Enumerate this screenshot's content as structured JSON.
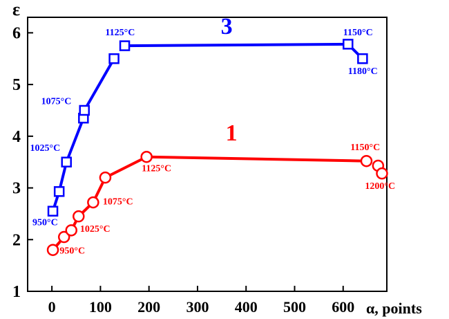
{
  "chart_data": {
    "type": "scatter",
    "title": "",
    "xlabel": "α, points",
    "ylabel": "ε",
    "xlim": [
      -50,
      690
    ],
    "ylim": [
      1,
      6.3
    ],
    "x_ticks": [
      0,
      100,
      200,
      300,
      400,
      500,
      600
    ],
    "y_ticks": [
      1,
      2,
      3,
      4,
      5,
      6
    ],
    "grid": false,
    "series": [
      {
        "name": "3",
        "color": "#0000ff",
        "marker": "square",
        "points": [
          {
            "x": 2,
            "y": 2.55
          },
          {
            "x": 15,
            "y": 2.93
          },
          {
            "x": 30,
            "y": 3.5
          },
          {
            "x": 65,
            "y": 4.35
          },
          {
            "x": 67,
            "y": 4.5
          },
          {
            "x": 128,
            "y": 5.5
          },
          {
            "x": 150,
            "y": 5.75
          },
          {
            "x": 610,
            "y": 5.78
          },
          {
            "x": 640,
            "y": 5.5
          }
        ],
        "segments": [
          [
            {
              "x": 2,
              "y": 2.55
            },
            {
              "x": 15,
              "y": 2.93
            }
          ],
          [
            {
              "x": 15,
              "y": 2.93
            },
            {
              "x": 30,
              "y": 3.5
            }
          ],
          [
            {
              "x": 30,
              "y": 3.5
            },
            {
              "x": 65,
              "y": 4.35
            }
          ],
          [
            {
              "x": 67,
              "y": 4.5
            },
            {
              "x": 128,
              "y": 5.5
            }
          ],
          [
            {
              "x": 150,
              "y": 5.75
            },
            {
              "x": 610,
              "y": 5.78
            }
          ],
          [
            {
              "x": 610,
              "y": 5.78
            },
            {
              "x": 640,
              "y": 5.5
            }
          ]
        ],
        "annotations": [
          {
            "text": "950°C",
            "x": -40,
            "y": 2.28
          },
          {
            "text": "1025°C",
            "x": -45,
            "y": 3.72
          },
          {
            "text": "1075°C",
            "x": -22,
            "y": 4.62
          },
          {
            "text": "1125°C",
            "x": 110,
            "y": 5.95
          },
          {
            "text": "1150°C",
            "x": 600,
            "y": 5.95
          },
          {
            "text": "1180°C",
            "x": 610,
            "y": 5.2
          }
        ]
      },
      {
        "name": "1",
        "color": "#ff0000",
        "marker": "circle",
        "points": [
          {
            "x": 2,
            "y": 1.8
          },
          {
            "x": 25,
            "y": 2.05
          },
          {
            "x": 40,
            "y": 2.18
          },
          {
            "x": 55,
            "y": 2.45
          },
          {
            "x": 85,
            "y": 2.72
          },
          {
            "x": 110,
            "y": 3.2
          },
          {
            "x": 195,
            "y": 3.6
          },
          {
            "x": 648,
            "y": 3.52
          },
          {
            "x": 672,
            "y": 3.43
          },
          {
            "x": 680,
            "y": 3.28
          }
        ],
        "segments": [
          [
            {
              "x": 2,
              "y": 1.8
            },
            {
              "x": 25,
              "y": 2.05
            }
          ],
          [
            {
              "x": 25,
              "y": 2.05
            },
            {
              "x": 40,
              "y": 2.18
            }
          ],
          [
            {
              "x": 40,
              "y": 2.18
            },
            {
              "x": 55,
              "y": 2.45
            }
          ],
          [
            {
              "x": 55,
              "y": 2.45
            },
            {
              "x": 85,
              "y": 2.72
            }
          ],
          [
            {
              "x": 85,
              "y": 2.72
            },
            {
              "x": 110,
              "y": 3.2
            }
          ],
          [
            {
              "x": 110,
              "y": 3.2
            },
            {
              "x": 195,
              "y": 3.6
            }
          ],
          [
            {
              "x": 195,
              "y": 3.6
            },
            {
              "x": 648,
              "y": 3.52
            }
          ]
        ],
        "annotations": [
          {
            "text": "950°C",
            "x": 16,
            "y": 1.73
          },
          {
            "text": "1025°C",
            "x": 58,
            "y": 2.15
          },
          {
            "text": "1075°C",
            "x": 105,
            "y": 2.68
          },
          {
            "text": "1125°C",
            "x": 185,
            "y": 3.32
          },
          {
            "text": "1150°C",
            "x": 615,
            "y": 3.73
          },
          {
            "text": "1200°C",
            "x": 645,
            "y": 2.98
          }
        ]
      }
    ],
    "series_labels": [
      {
        "text": "3",
        "x": 360,
        "y": 5.98
      },
      {
        "text": "1",
        "x": 370,
        "y": 3.92
      }
    ]
  }
}
